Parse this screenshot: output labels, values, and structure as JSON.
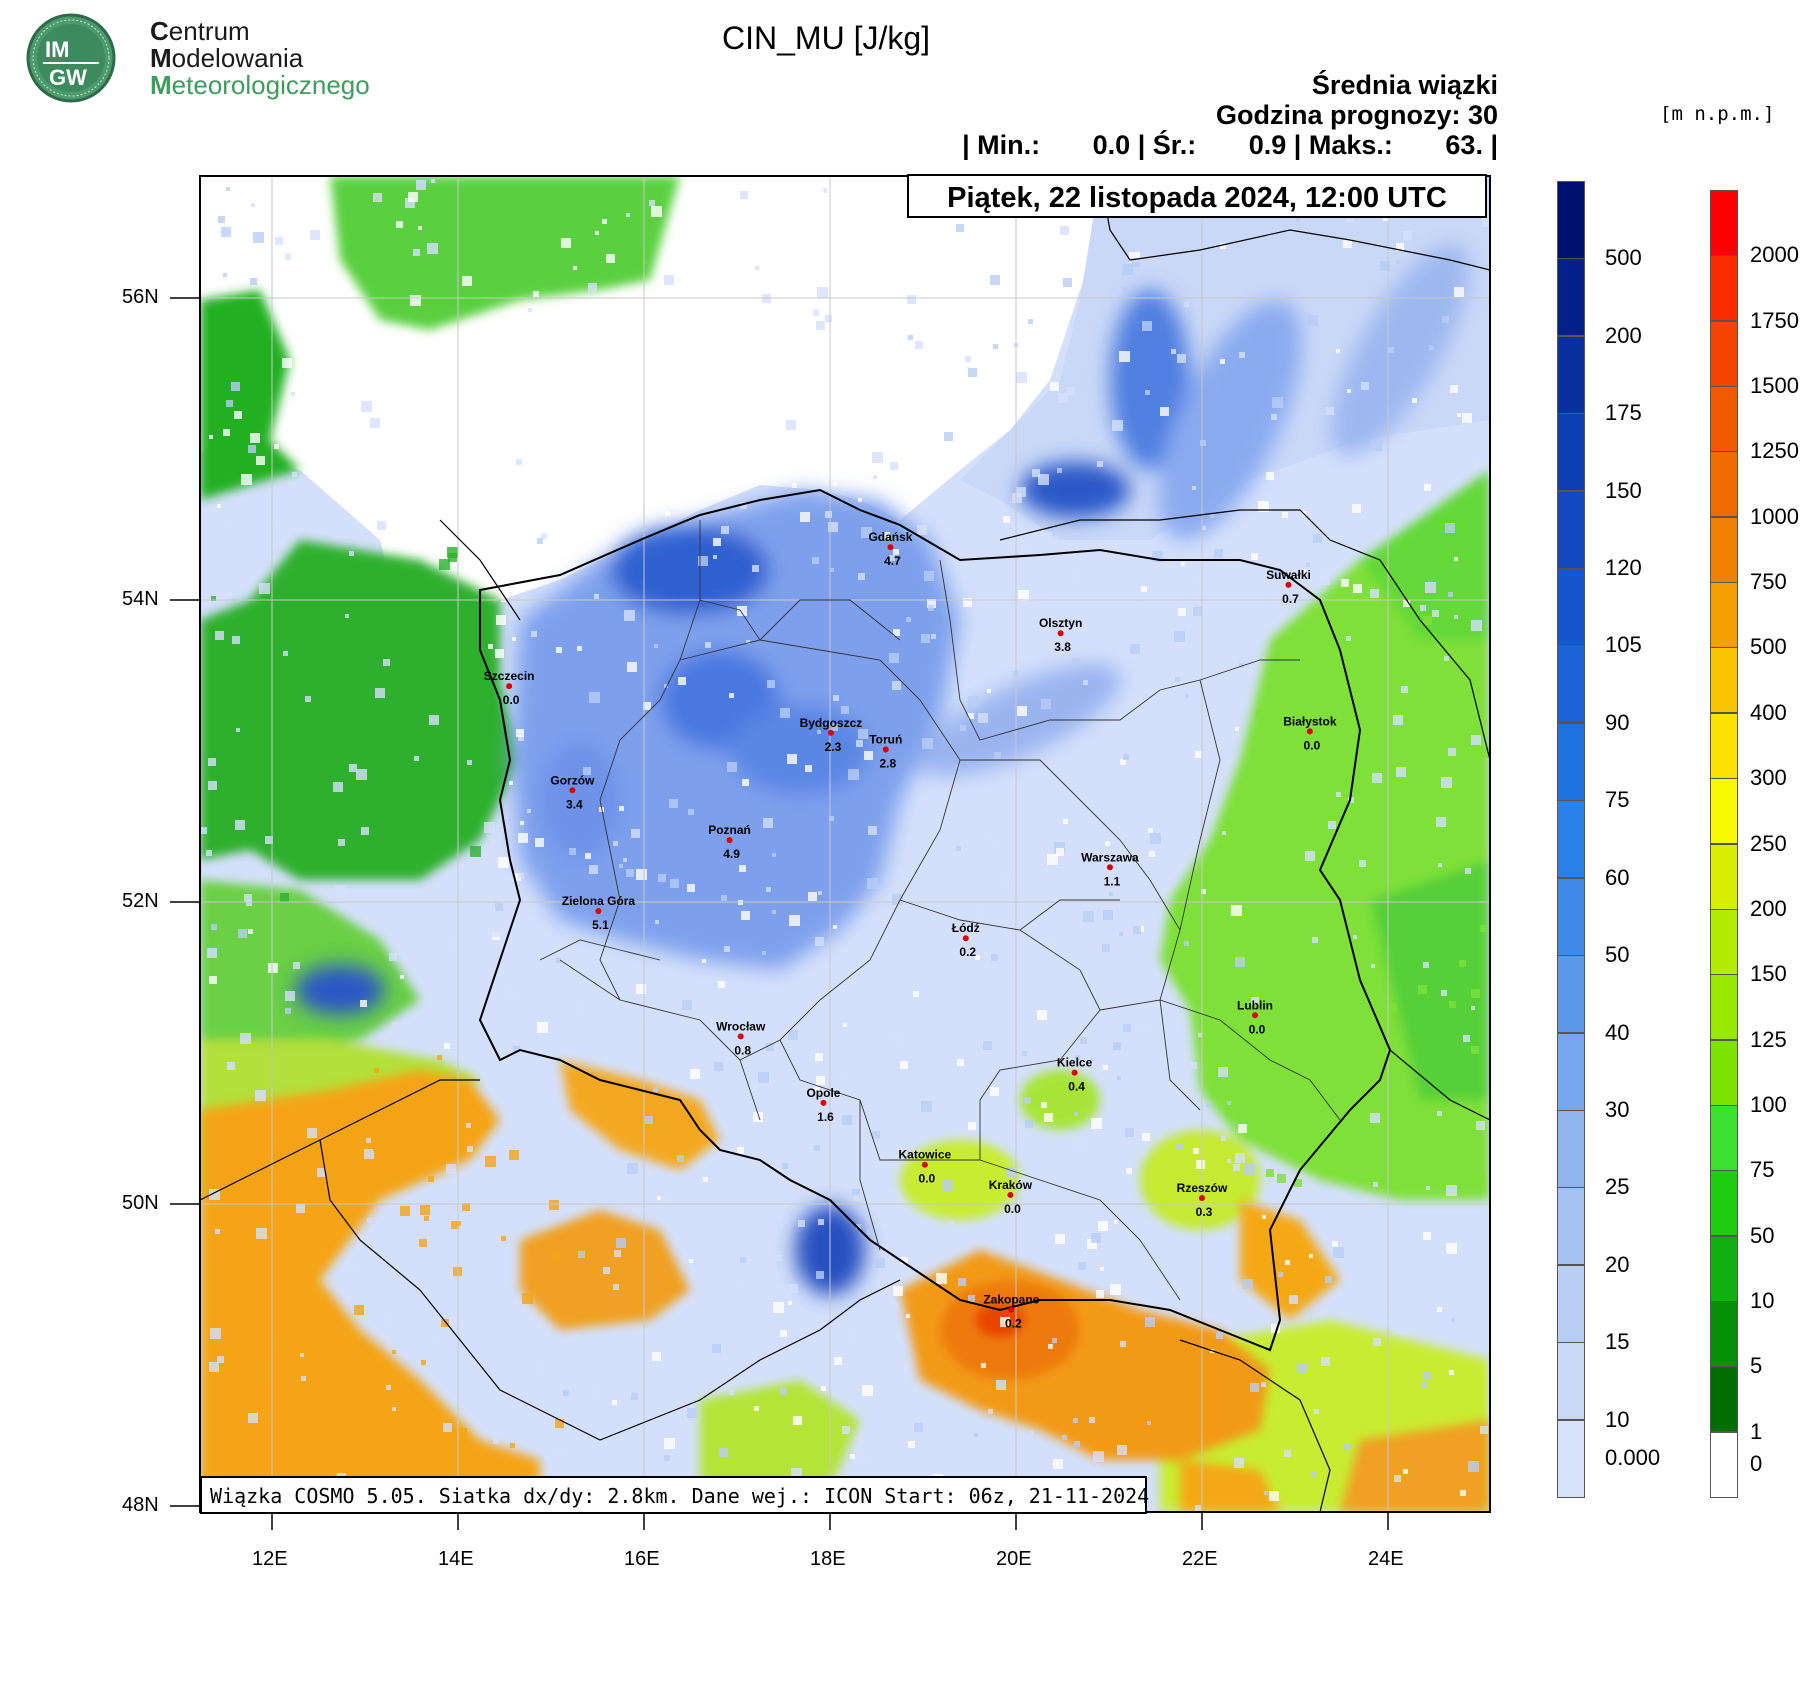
{
  "logo": {
    "badge_line1": "IM",
    "badge_line2": "GW",
    "line1_initial": "C",
    "line1_rest": "entrum",
    "line2_initial": "M",
    "line2_rest": "odelowania",
    "line3_initial": "M",
    "line3_rest": "eteorologicznego"
  },
  "title": "CIN_MU [J/kg]",
  "info": {
    "line1": "Średnia wiązki",
    "line2": "Godzina prognozy: 30",
    "line3": "| Min.:       0.0 | Śr.:       0.9 | Maks.:       63. |"
  },
  "date_label": "Piątek, 22 listopada 2024, 12:00 UTC",
  "footer_label": "Wiązka COSMO 5.05. Siatka dx/dy: 2.8km. Dane wej.: ICON Start: 06z, 21-11-2024",
  "elevation_unit": "[m n.p.m.]",
  "axes": {
    "lat_ticks": [
      "56N",
      "54N",
      "52N",
      "50N",
      "48N"
    ],
    "lon_ticks": [
      "12E",
      "14E",
      "16E",
      "18E",
      "20E",
      "22E",
      "24E"
    ]
  },
  "cities": [
    {
      "name": "Gdańsk",
      "value": "4.7",
      "lon": 18.65,
      "lat": 54.35
    },
    {
      "name": "Suwałki",
      "value": "0.7",
      "lon": 22.93,
      "lat": 54.1
    },
    {
      "name": "Olsztyn",
      "value": "3.8",
      "lon": 20.48,
      "lat": 53.78
    },
    {
      "name": "Szczecin",
      "value": "0.0",
      "lon": 14.55,
      "lat": 53.43
    },
    {
      "name": "Białystok",
      "value": "0.0",
      "lon": 23.16,
      "lat": 53.13
    },
    {
      "name": "Bydgoszcz",
      "value": "2.3",
      "lon": 18.01,
      "lat": 53.12
    },
    {
      "name": "Toruń",
      "value": "2.8",
      "lon": 18.6,
      "lat": 53.01
    },
    {
      "name": "Gorzów",
      "value": "3.4",
      "lon": 15.23,
      "lat": 52.74
    },
    {
      "name": "Poznań",
      "value": "4.9",
      "lon": 16.92,
      "lat": 52.41
    },
    {
      "name": "Warszawa",
      "value": "1.1",
      "lon": 21.01,
      "lat": 52.23
    },
    {
      "name": "Zielona Góra",
      "value": "5.1",
      "lon": 15.51,
      "lat": 51.94
    },
    {
      "name": "Łódź",
      "value": "0.2",
      "lon": 19.46,
      "lat": 51.76
    },
    {
      "name": "Lublin",
      "value": "0.0",
      "lon": 22.57,
      "lat": 51.25
    },
    {
      "name": "Wrocław",
      "value": "0.8",
      "lon": 17.04,
      "lat": 51.11
    },
    {
      "name": "Kielce",
      "value": "0.4",
      "lon": 20.63,
      "lat": 50.87
    },
    {
      "name": "Opole",
      "value": "1.6",
      "lon": 17.93,
      "lat": 50.67
    },
    {
      "name": "Katowice",
      "value": "0.0",
      "lon": 19.02,
      "lat": 50.26
    },
    {
      "name": "Kraków",
      "value": "0.0",
      "lon": 19.94,
      "lat": 50.06
    },
    {
      "name": "Rzeszów",
      "value": "0.3",
      "lon": 22.0,
      "lat": 50.04
    },
    {
      "name": "Zakopane",
      "value": "0.2",
      "lon": 19.95,
      "lat": 49.3
    }
  ],
  "cin_colorbar": {
    "labels": [
      "500",
      "200",
      "175",
      "150",
      "120",
      "105",
      "90",
      "75",
      "60",
      "50",
      "40",
      "30",
      "25",
      "20",
      "15",
      "10",
      "0.000"
    ],
    "colors": [
      "#00106e",
      "#06208a",
      "#0a2f9e",
      "#0d3fb4",
      "#1148c0",
      "#1556cc",
      "#1a64d8",
      "#1f72e0",
      "#2a82e8",
      "#3d8ae8",
      "#5a98ea",
      "#76a6ec",
      "#8fb4ee",
      "#a5c2f0",
      "#b8cef3",
      "#c8d9f6",
      "#d6e2fa"
    ]
  },
  "elev_colorbar": {
    "labels": [
      "2000",
      "1750",
      "1500",
      "1250",
      "1000",
      "750",
      "500",
      "400",
      "300",
      "250",
      "200",
      "150",
      "125",
      "100",
      "75",
      "50",
      "10",
      "5",
      "1",
      "0"
    ],
    "colors": [
      "#ff0000",
      "#fa2c00",
      "#f54400",
      "#f25a00",
      "#f06c00",
      "#f08000",
      "#f4a000",
      "#f8c400",
      "#fce000",
      "#f8f800",
      "#d8f000",
      "#b4ec00",
      "#98e800",
      "#7ce400",
      "#3ce030",
      "#20cc10",
      "#10b010",
      "#089008",
      "#006e00",
      "#ffffff"
    ]
  }
}
